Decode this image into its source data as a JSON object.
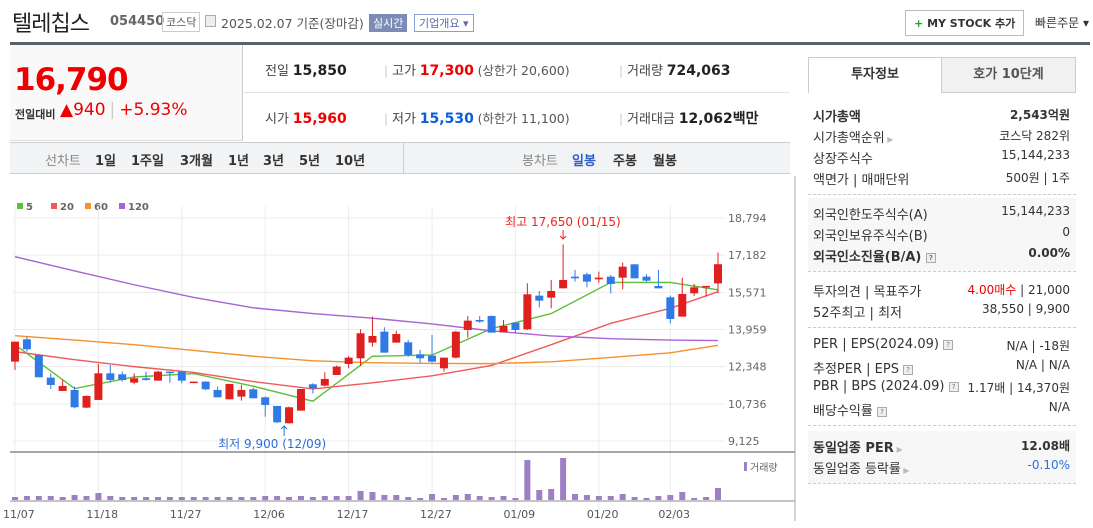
{
  "header": {
    "name": "텔레칩스",
    "code": "054450",
    "market": "코스닥",
    "date": "2025.02.07 기준(장마감)",
    "realtime": "실시간",
    "overview": "기업개요 ▾",
    "mystock": "MY STOCK 추가",
    "mystock_icon": "+",
    "quick_order": "빠른주문 ▾"
  },
  "summary": {
    "price": "16,790",
    "change_label": "전일대비",
    "change": "▲940",
    "change_pct": "+5.93%",
    "prev_label": "전일",
    "prev": "15,850",
    "high_label": "고가",
    "high": "17,300",
    "upper_limit": "(상한가 20,600)",
    "volume_label": "거래량",
    "volume": "724,063",
    "open_label": "시가",
    "open": "15,960",
    "low_label": "저가",
    "low": "15,530",
    "lower_limit": "(하한가 11,100)",
    "amount_label": "거래대금",
    "amount": "12,062",
    "amount_unit": "백만"
  },
  "tabs": {
    "line_label": "선차트",
    "line": [
      "1일",
      "1주일",
      "3개월",
      "1년",
      "3년",
      "5년",
      "10년"
    ],
    "candle_label": "봉차트",
    "candle": [
      "일봉",
      "주봉",
      "월봉"
    ],
    "active": "일봉"
  },
  "chart_data": {
    "type": "candlestick",
    "legend": [
      {
        "name": "5",
        "color": "#5cbf3c"
      },
      {
        "name": "20",
        "color": "#f05a5a"
      },
      {
        "name": "60",
        "color": "#f7902b"
      },
      {
        "name": "120",
        "color": "#a863d6"
      }
    ],
    "yticks": [
      "18,794",
      "17,182",
      "15,571",
      "13,959",
      "12,348",
      "10,736",
      "9,125"
    ],
    "ylim": [
      9125,
      18794
    ],
    "xticks": [
      {
        "label": "11/07",
        "i": 0
      },
      {
        "label": "11/18",
        "i": 7
      },
      {
        "label": "11/27",
        "i": 14
      },
      {
        "label": "12/06",
        "i": 21
      },
      {
        "label": "12/17",
        "i": 28
      },
      {
        "label": "12/27",
        "i": 35
      },
      {
        "label": "01/09",
        "i": 42
      },
      {
        "label": "01/20",
        "i": 49
      },
      {
        "label": "02/03",
        "i": 55
      }
    ],
    "max_annotation": "최고 17,650 (01/15)",
    "min_annotation": "최저 9,900 (12/09)",
    "max_index": 46,
    "min_index": 22,
    "volume_label": "거래량",
    "up_color": "#e0201f",
    "down_color": "#2f7ae5",
    "ohlc": [
      [
        12566,
        13433,
        12205,
        13433
      ],
      [
        13534,
        13650,
        13000,
        13101
      ],
      [
        12855,
        12900,
        11887,
        11887
      ],
      [
        11873,
        12060,
        11381,
        11555
      ],
      [
        11295,
        11771,
        11295,
        11511
      ],
      [
        11338,
        11482,
        10543,
        10587
      ],
      [
        10572,
        11100,
        10550,
        11078
      ],
      [
        10905,
        12465,
        10905,
        12060
      ],
      [
        12060,
        12422,
        11670,
        11771
      ],
      [
        12017,
        12133,
        11700,
        11771
      ],
      [
        11656,
        12060,
        11584,
        11844
      ],
      [
        11844,
        12133,
        11743,
        11771
      ],
      [
        11742,
        12170,
        11742,
        12133
      ],
      [
        12133,
        12133,
        11656,
        12090
      ],
      [
        12133,
        12133,
        11627,
        11742
      ],
      [
        11656,
        11700,
        11656,
        11700
      ],
      [
        11699,
        11720,
        11330,
        11367
      ],
      [
        11338,
        11482,
        11020,
        11020
      ],
      [
        10933,
        11600,
        10933,
        11598
      ],
      [
        11049,
        11555,
        10876,
        11338
      ],
      [
        11367,
        11440,
        10977,
        10977
      ],
      [
        11020,
        11050,
        10182,
        10688
      ],
      [
        10644,
        10644,
        9900,
        9936
      ],
      [
        9893,
        10620,
        9880,
        10587
      ],
      [
        10442,
        11381,
        10442,
        11381
      ],
      [
        11584,
        11627,
        11193,
        11410
      ],
      [
        11526,
        12104,
        11490,
        11815
      ],
      [
        11988,
        12400,
        11988,
        12350
      ],
      [
        12465,
        12812,
        12277,
        12740
      ],
      [
        12711,
        13968,
        12379,
        13795
      ],
      [
        13390,
        14517,
        13217,
        13679
      ],
      [
        13866,
        14055,
        12956,
        12956
      ],
      [
        13390,
        13910,
        13390,
        13765
      ],
      [
        13404,
        13505,
        12783,
        12855
      ],
      [
        12884,
        13072,
        12523,
        12711
      ],
      [
        12826,
        13722,
        12523,
        12566
      ],
      [
        12277,
        12740,
        12133,
        12740
      ],
      [
        12740,
        13900,
        12700,
        13866
      ],
      [
        13939,
        14546,
        13606,
        14344
      ],
      [
        14372,
        14546,
        14257,
        14300
      ],
      [
        14546,
        14560,
        13823,
        13823
      ],
      [
        13838,
        14372,
        13838,
        14112
      ],
      [
        14257,
        14257,
        13794,
        13939
      ],
      [
        13968,
        15962,
        13939,
        15485
      ],
      [
        15427,
        15630,
        14922,
        15211
      ],
      [
        15341,
        16106,
        14878,
        15630
      ],
      [
        15745,
        17650,
        15745,
        16106
      ],
      [
        16251,
        16540,
        16034,
        16179
      ],
      [
        16352,
        16424,
        15788,
        16034
      ],
      [
        16135,
        16468,
        15991,
        16207
      ],
      [
        16251,
        16323,
        15528,
        15933
      ],
      [
        16207,
        16858,
        15702,
        16684
      ],
      [
        16786,
        16786,
        16179,
        16179
      ],
      [
        16251,
        16352,
        16034,
        16078
      ],
      [
        15846,
        16540,
        15745,
        15745
      ],
      [
        15355,
        15427,
        14228,
        14416
      ],
      [
        14517,
        16207,
        14517,
        15500
      ],
      [
        15529,
        15933,
        15413,
        15788
      ],
      [
        15788,
        15846,
        15384,
        15850
      ],
      [
        15960,
        17300,
        15530,
        16790
      ]
    ],
    "ma_sample_every": 5,
    "ma": {
      "5": [
        13300,
        11400,
        11900,
        12050,
        11500,
        10850,
        12800,
        12850,
        14000,
        14650,
        16000,
        16000,
        15680
      ],
      "20": [
        13000,
        12650,
        12350,
        12100,
        11700,
        11381,
        11650,
        11950,
        12400,
        13300,
        14228,
        14878,
        15600
      ],
      "60": [
        13693,
        13500,
        13300,
        13050,
        12800,
        12600,
        12520,
        12490,
        12480,
        12560,
        12750,
        12950,
        13274
      ],
      "120": [
        17118,
        16500,
        15900,
        15350,
        14900,
        14650,
        14450,
        14200,
        13900,
        13680,
        13560,
        13500,
        13480
      ]
    },
    "volume": [
      3,
      4,
      4,
      4,
      3,
      5,
      4,
      7,
      4,
      3,
      3,
      3,
      3,
      3,
      3,
      3,
      3,
      3,
      3,
      3,
      3,
      4,
      4,
      3,
      4,
      3,
      4,
      4,
      4,
      9,
      8,
      5,
      5,
      3,
      2,
      6,
      2,
      5,
      6,
      4,
      3,
      4,
      2,
      40,
      10,
      11,
      42,
      6,
      5,
      4,
      4,
      6,
      3,
      2,
      4,
      5,
      8,
      2,
      3,
      12
    ]
  },
  "panel": {
    "tabs": [
      "투자정보",
      "호가 10단계"
    ],
    "rows1": [
      {
        "k": "시가총액",
        "v": "2,543억원",
        "bold": true
      },
      {
        "k": "시가총액순위",
        "v": "코스닥 282위",
        "arrow": true
      },
      {
        "k": "상장주식수",
        "v": "15,144,233"
      },
      {
        "k": "액면가 | 매매단위",
        "v": "500원 | 1주"
      }
    ],
    "rows2": [
      {
        "k": "외국인한도주식수(A)",
        "v": "15,144,233"
      },
      {
        "k": "외국인보유주식수(B)",
        "v": "0"
      },
      {
        "k": "외국인소진율(B/A)",
        "v": "0.00%",
        "bold": true,
        "help": true
      }
    ],
    "rows3": [
      {
        "k": "투자의견 | 목표주가",
        "v1": "4.00매수",
        "v": " | 21,000"
      },
      {
        "k": "52주최고 | 최저",
        "v": "38,550 | 9,900"
      }
    ],
    "rows4": [
      {
        "k": "PER | EPS(2024.09)",
        "v": "N/A | -18원",
        "help": true
      },
      {
        "k": "추정PER | EPS",
        "v": "N/A | N/A",
        "help": true
      },
      {
        "k": "PBR | BPS (2024.09)",
        "v": "1.17배 | 14,370원",
        "help": true
      },
      {
        "k": "배당수익률",
        "v": "N/A",
        "help": true
      }
    ],
    "rows5": [
      {
        "k": "동일업종 PER",
        "v": "12.08배",
        "bold": true,
        "arrow": true
      },
      {
        "k": "동일업종 등락률",
        "v": "-0.10%",
        "arrow": true,
        "blue": true
      }
    ]
  }
}
